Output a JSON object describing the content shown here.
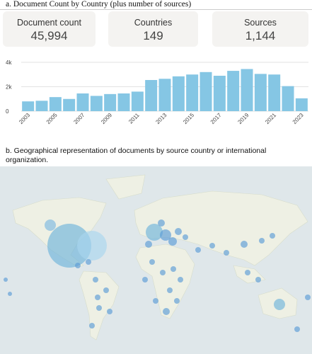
{
  "captions": {
    "a": "a.   Document Count by Country (plus number of sources)",
    "b": "b.   Geographical representation of documents by source country or international organization."
  },
  "stats": [
    {
      "label": "Document count",
      "value": "45,994"
    },
    {
      "label": "Countries",
      "value": "149"
    },
    {
      "label": "Sources",
      "value": "1,144"
    }
  ],
  "chart_data": {
    "type": "bar",
    "categories": [
      "2003",
      null,
      "2005",
      null,
      "2007",
      null,
      "2009",
      null,
      "2011",
      null,
      "2013",
      null,
      "2015",
      null,
      "2017",
      null,
      "2019",
      null,
      "2021",
      null,
      "2023"
    ],
    "values": [
      800,
      850,
      1150,
      1000,
      1450,
      1250,
      1400,
      1450,
      1600,
      2550,
      2650,
      2850,
      3000,
      3200,
      2900,
      3300,
      3450,
      3050,
      3000,
      2050,
      1050
    ],
    "color": "#85c6e4",
    "ylim": [
      0,
      4000
    ],
    "yticks": [
      0,
      {
        "value": 2000,
        "label": "2k"
      },
      {
        "value": 4000,
        "label": "4k"
      }
    ],
    "grid": true
  }
}
